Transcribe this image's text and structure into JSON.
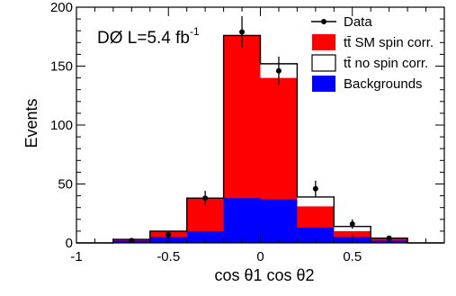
{
  "chart_data": {
    "type": "bar",
    "title": "DØ L=5.4 fb",
    "title_superscript": "-1",
    "xlabel": "cos θ1 cos θ2",
    "ylabel": "Events",
    "xlim": [
      -1,
      1
    ],
    "ylim": [
      0,
      200
    ],
    "x_ticks": [
      -1,
      -0.5,
      0,
      0.5
    ],
    "x_tick_labels": [
      "-1",
      "-0.5",
      "0",
      "0.5"
    ],
    "y_ticks": [
      0,
      50,
      100,
      150,
      200
    ],
    "y_tick_labels": [
      "0",
      "50",
      "100",
      "150",
      "200"
    ],
    "bin_edges": [
      -1,
      -0.8,
      -0.6,
      -0.4,
      -0.2,
      0,
      0.2,
      0.4,
      0.6,
      0.8,
      1
    ],
    "legend_position": "top-right",
    "series": [
      {
        "name": "Backgrounds",
        "kind": "stack-bottom",
        "color": "#0000ff",
        "values": [
          0,
          2,
          5,
          10,
          38,
          37,
          13,
          5,
          2,
          0
        ]
      },
      {
        "name": "tt̄ SM spin corr.",
        "kind": "stack-total",
        "color": "#ff0000",
        "values": [
          0,
          3,
          10,
          38,
          176,
          140,
          31,
          10,
          4,
          0
        ]
      },
      {
        "name": "tt̄ no spin corr.",
        "kind": "outline-total",
        "color": "#000000",
        "values": [
          0,
          3,
          10,
          38,
          176,
          152,
          39,
          14,
          4,
          0
        ]
      },
      {
        "name": "Data",
        "kind": "points",
        "color": "#000000",
        "x": [
          -0.7,
          -0.5,
          -0.3,
          -0.1,
          0.1,
          0.3,
          0.5,
          0.7
        ],
        "values": [
          2,
          7,
          38,
          179,
          146,
          46,
          16,
          4
        ],
        "errors": [
          1.4,
          2.6,
          6.2,
          13.4,
          12.1,
          6.8,
          4.0,
          2.0
        ]
      }
    ],
    "legend": [
      {
        "label": "Data",
        "marker": "point"
      },
      {
        "label": "tt̄ SM spin corr.",
        "marker": "fill-red"
      },
      {
        "label": "tt̄ no spin corr.",
        "marker": "outline"
      },
      {
        "label": "Backgrounds",
        "marker": "fill-blue"
      }
    ]
  }
}
